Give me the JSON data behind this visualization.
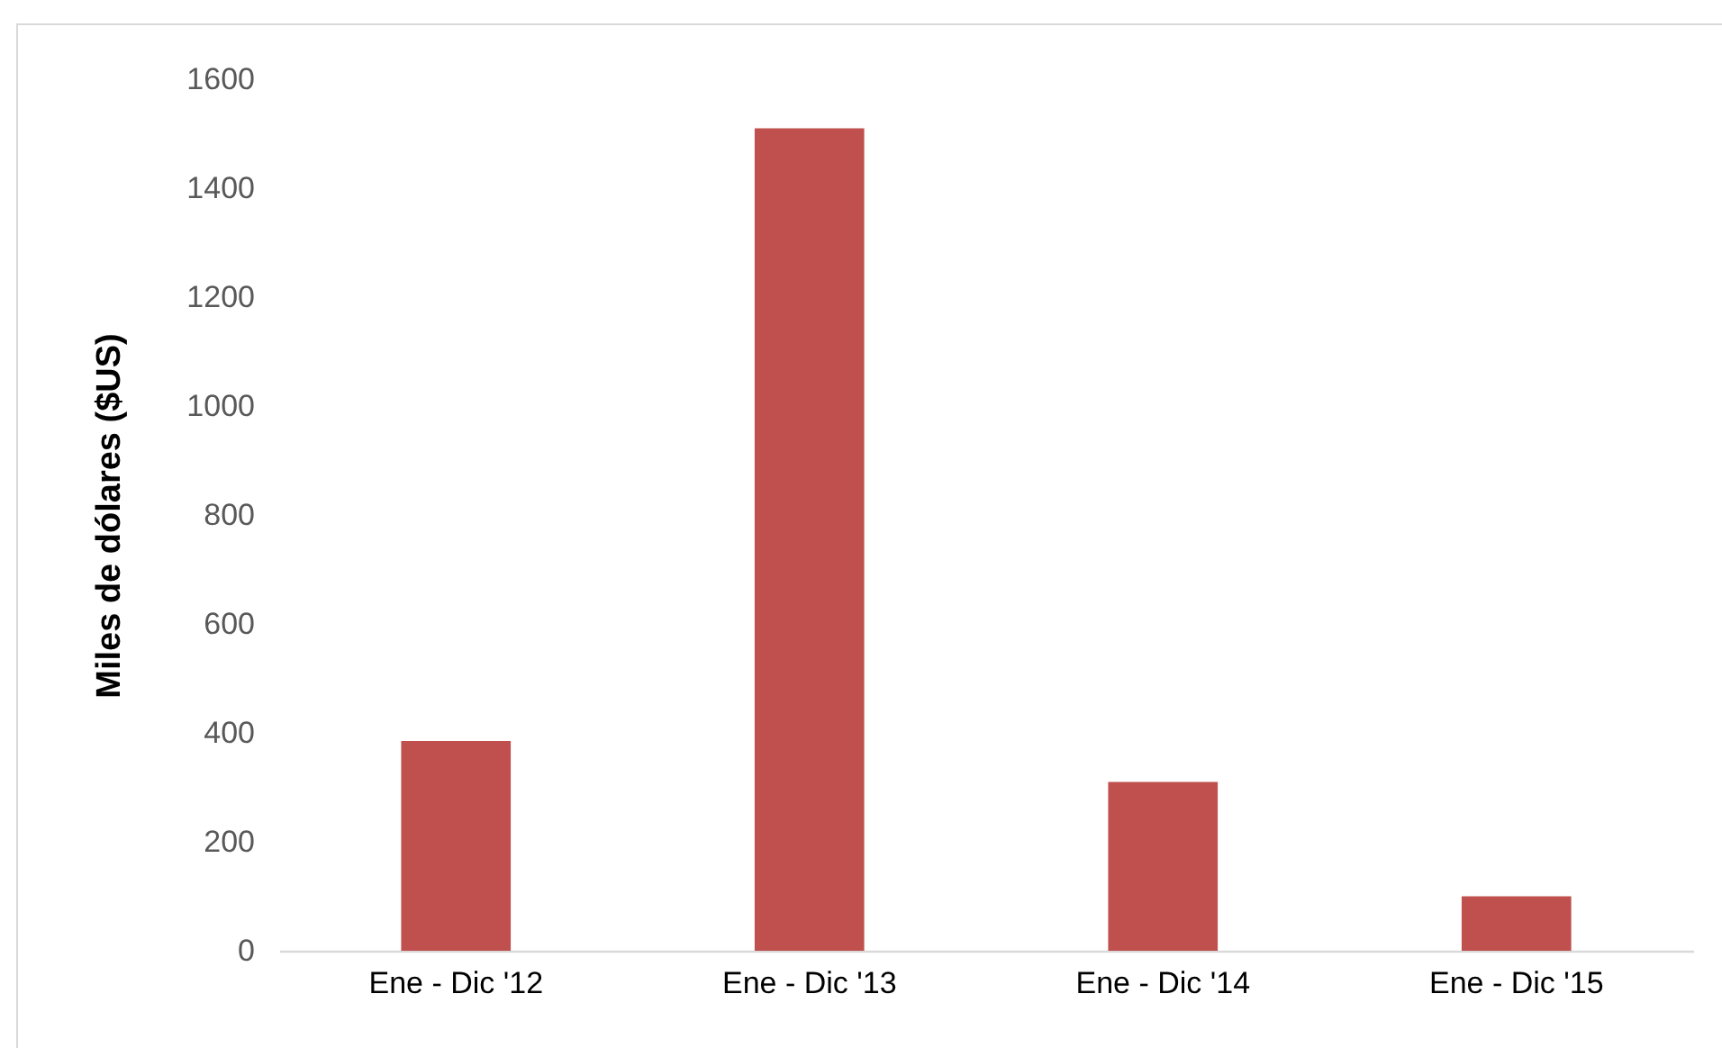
{
  "chart_data": {
    "type": "bar",
    "ylabel": "Miles de dólares ($US)",
    "categories": [
      "Ene - Dic '12",
      "Ene - Dic '13",
      "Ene - Dic '14",
      "Ene - Dic '15"
    ],
    "values": [
      385,
      1510,
      310,
      100
    ],
    "color": "#c0504d",
    "ylim": [
      0,
      1600
    ],
    "yticks": [
      0,
      200,
      400,
      600,
      800,
      1000,
      1200,
      1400,
      1600
    ]
  }
}
